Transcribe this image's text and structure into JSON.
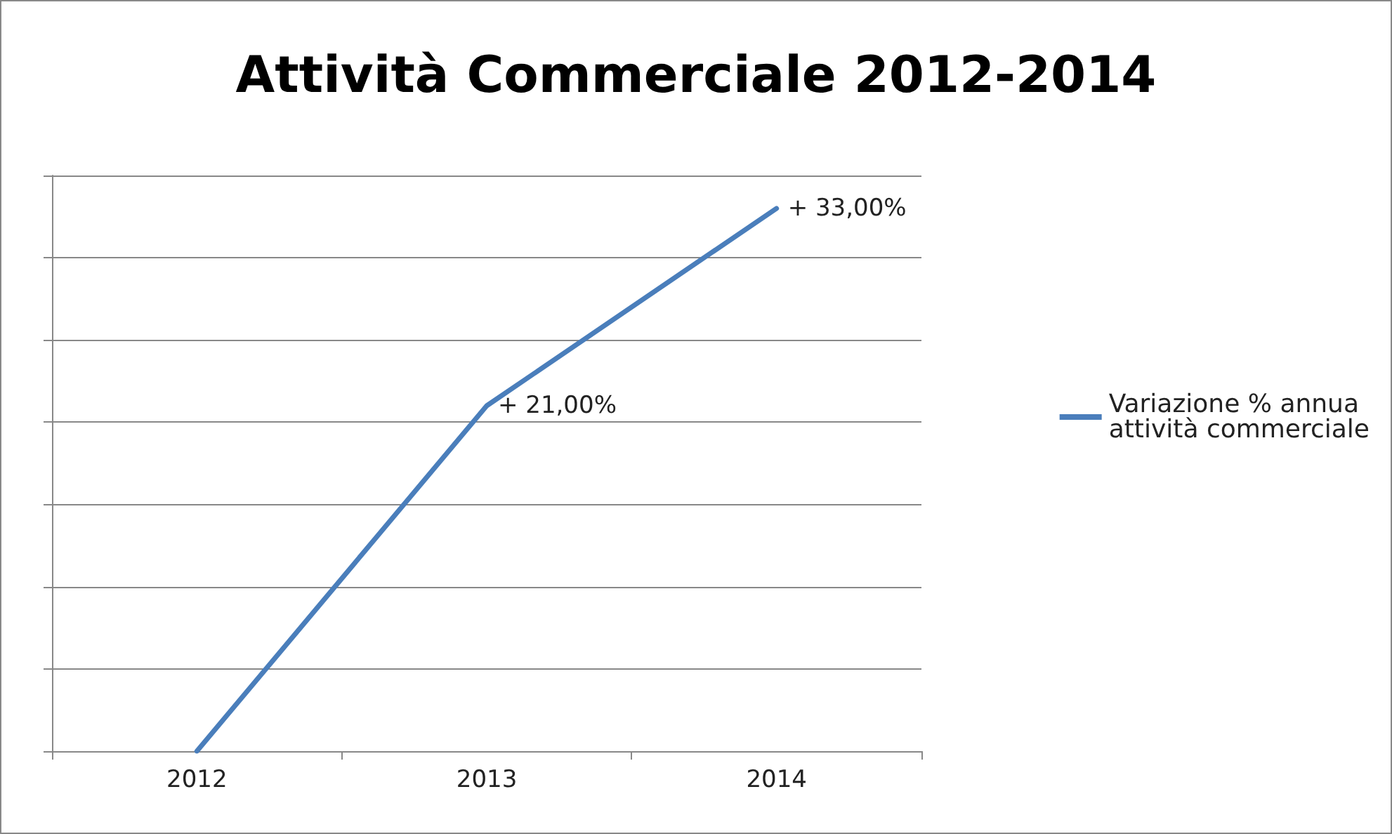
{
  "chart_data": {
    "type": "line",
    "title": "Attività Commerciale 2012-2014",
    "categories": [
      "2012",
      "2013",
      "2014"
    ],
    "series": [
      {
        "name": "Variazione % annua attività commerciale",
        "color": "#4a7ebb",
        "values": [
          0,
          21,
          33
        ],
        "value_labels": [
          null,
          "+ 21,00%",
          "+ 33,00%"
        ]
      }
    ],
    "ylim": [
      0,
      35
    ],
    "yticks": [
      {
        "value": 0,
        "label": null
      },
      {
        "value": 5,
        "label": null
      },
      {
        "value": 10,
        "label": null
      },
      {
        "value": 15,
        "label": null
      },
      {
        "value": 20,
        "label": null
      },
      {
        "value": 25,
        "label": null
      },
      {
        "value": 30,
        "label": null
      },
      {
        "value": 35,
        "label": null
      }
    ],
    "tick_labels": "x",
    "grid": "y",
    "legend": "right",
    "marker": "none",
    "line_style": "solid"
  }
}
